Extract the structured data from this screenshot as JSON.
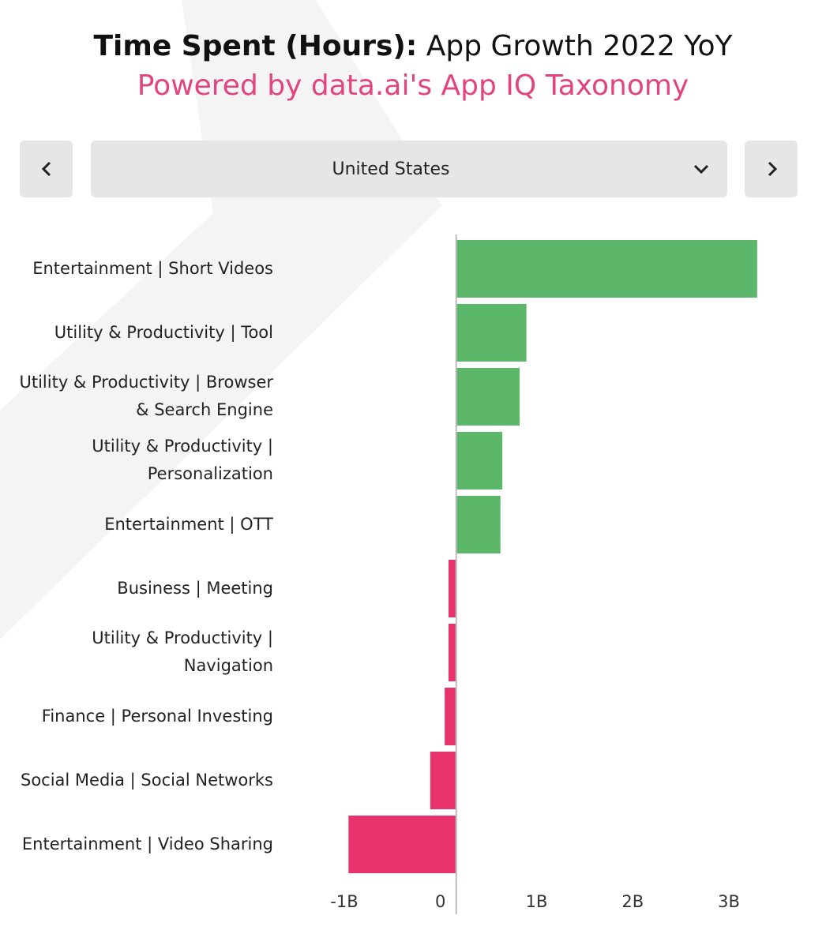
{
  "title_bold": "Time Spent (Hours):",
  "title_rest": " App Growth 2022 YoY",
  "subtitle": "Powered by data.ai's App IQ Taxonomy",
  "selector": "United States",
  "chart_data": {
    "type": "barh",
    "categories": [
      "Entertainment | Short Videos",
      "Utility & Productivity | Tool",
      "Utility & Productivity | Browser & Search Engine",
      "Utility & Productivity | Personalization",
      "Entertainment | OTT",
      "Business | Meeting",
      "Utility & Productivity | Navigation",
      "Finance | Personal Investing",
      "Social Media | Social Networks",
      "Entertainment | Video Sharing"
    ],
    "values": [
      3130000000,
      730000000,
      660000000,
      480000000,
      460000000,
      -80000000,
      -80000000,
      -120000000,
      -270000000,
      -1120000000
    ],
    "colors": [
      "#5cb76a",
      "#5cb76a",
      "#5cb76a",
      "#5cb76a",
      "#5cb76a",
      "#e8336d",
      "#e8336d",
      "#e8336d",
      "#e8336d",
      "#e8336d"
    ],
    "xlim": [
      -1200000000,
      3200000000
    ],
    "xticks": [
      {
        "value": -1000000000,
        "label": "-1B"
      },
      0,
      {
        "value": 1000000000,
        "label": "1B"
      },
      {
        "value": 2000000000,
        "label": "2B"
      },
      {
        "value": 3000000000,
        "label": "3B"
      }
    ]
  }
}
